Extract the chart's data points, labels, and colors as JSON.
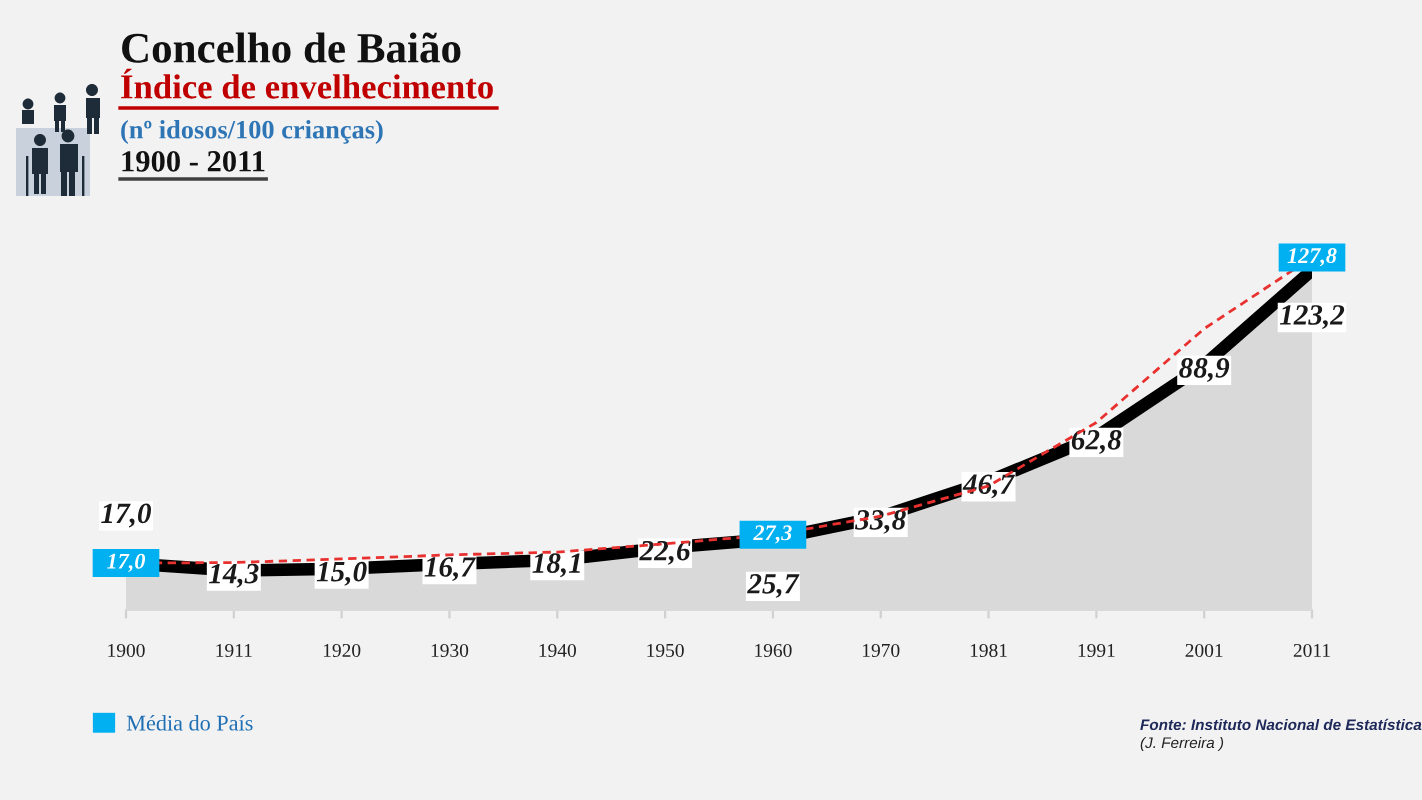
{
  "chart_data": {
    "type": "area",
    "title": "Concelho de Baião",
    "subtitle": "Índice de envelhecimento",
    "ylabel": "(nº idosos/100 crianças)",
    "categories": [
      "1900",
      "1911",
      "1920",
      "1930",
      "1940",
      "1950",
      "1960",
      "1970",
      "1981",
      "1991",
      "2001",
      "2011"
    ],
    "series": [
      {
        "color": "#000000",
        "values": [
          17.0,
          14.3,
          15.0,
          16.7,
          18.1,
          22.6,
          25.7,
          33.8,
          46.7,
          62.8,
          88.9,
          123.2
        ],
        "value_labels": [
          "17,0",
          "14,3",
          "15,0",
          "16,7",
          "18,1",
          "22,6",
          "25,7",
          "33,8",
          "46,7",
          "62,8",
          "88,9",
          "123,2"
        ]
      },
      {
        "type": "line",
        "color": "#e8302f",
        "line_style": "dashed",
        "values": [
          17.0,
          17.2,
          18.5,
          20.0,
          21.0,
          24.0,
          27.3,
          34.0,
          45.0,
          68.0,
          102.0,
          127.8
        ]
      },
      {
        "type": "scatter",
        "name": "Média do País",
        "color": "#00b0f0",
        "marker": "square",
        "values": [
          17.0,
          null,
          null,
          null,
          null,
          null,
          27.3,
          null,
          null,
          null,
          null,
          127.8
        ],
        "value_labels": [
          "17,0",
          null,
          null,
          null,
          null,
          null,
          "27,3",
          null,
          null,
          null,
          null,
          "127,8"
        ]
      }
    ],
    "legend": "bottom left",
    "tick_labels": "x",
    "annotations": [
      "1900 - 2011",
      "Fonte: Instituto Nacional de Estatística",
      "(J. Ferreira )"
    ]
  }
}
